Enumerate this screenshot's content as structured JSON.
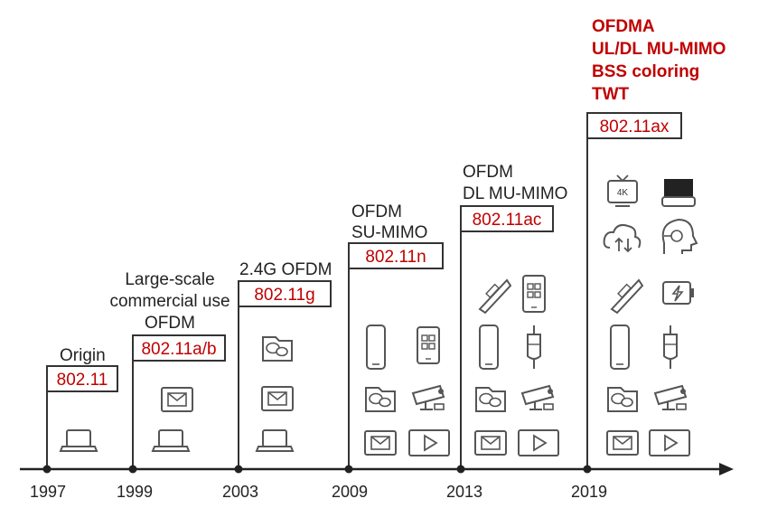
{
  "timeline": {
    "years": [
      "1997",
      "1999",
      "2003",
      "2009",
      "2013",
      "2019"
    ]
  },
  "generations": [
    {
      "standard": "802.11",
      "features": [
        "Origin"
      ]
    },
    {
      "standard": "802.11a/b",
      "features": [
        "Large-scale",
        "commercial use",
        "OFDM"
      ]
    },
    {
      "standard": "802.11g",
      "features": [
        "2.4G OFDM"
      ]
    },
    {
      "standard": "802.11n",
      "features": [
        "OFDM",
        "SU-MIMO"
      ]
    },
    {
      "standard": "802.11ac",
      "features": [
        "OFDM",
        "DL MU-MIMO"
      ]
    },
    {
      "standard": "802.11ax",
      "features": [
        "OFDMA",
        "UL/DL MU-MIMO",
        "BSS coloring",
        "TWT"
      ]
    }
  ],
  "icons": {
    "tv_badge": "4K",
    "names": [
      "laptop-icon",
      "email-icon",
      "chat-icon",
      "smartphone-icon",
      "tablet-icon",
      "camera-icon",
      "video-play-icon",
      "pos-terminal-icon",
      "medical-drip-icon",
      "tv-4k-icon",
      "vr-headset-icon",
      "cloud-upload-icon",
      "ai-head-icon",
      "battery-saving-icon"
    ]
  },
  "colors": {
    "accent": "#c00000",
    "line": "#333333"
  }
}
